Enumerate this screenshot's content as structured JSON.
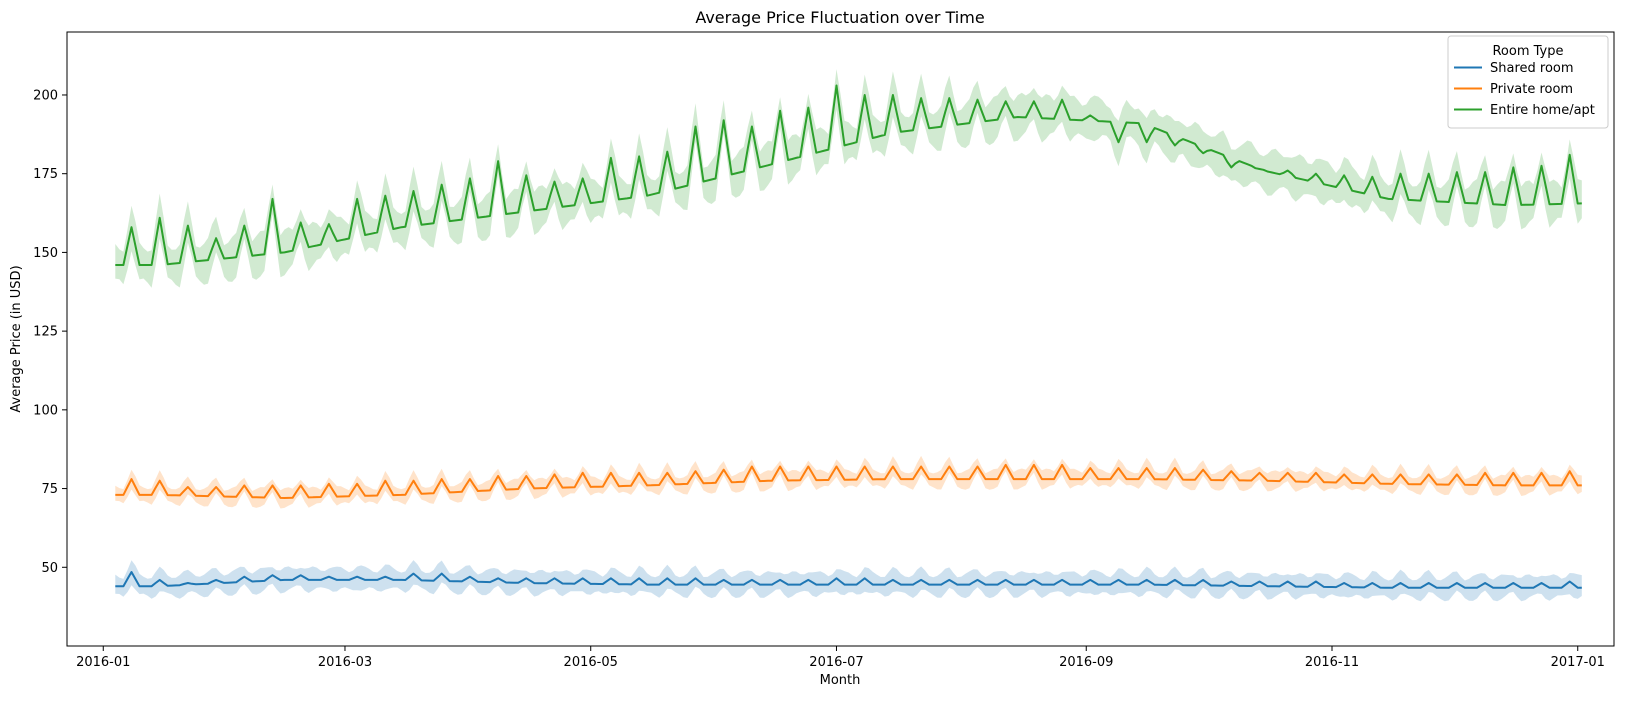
{
  "chart_data": {
    "type": "line",
    "title": "Average Price Fluctuation over Time",
    "xlabel": "Month",
    "ylabel": "Average Price (in USD)",
    "x_range": [
      "2015-12-23",
      "2017-01-10"
    ],
    "ylim": [
      25,
      220
    ],
    "x_ticks": [
      "2016-01",
      "2016-03",
      "2016-05",
      "2016-07",
      "2016-09",
      "2016-11",
      "2017-01"
    ],
    "y_ticks": [
      50,
      75,
      100,
      125,
      150,
      175,
      200
    ],
    "grid": false,
    "legend": {
      "title": "Room Type",
      "placement": "top-right",
      "entries": [
        "Shared room",
        "Private room",
        "Entire home/apt"
      ]
    },
    "x_start": "2016-01-04",
    "x_end": "2017-01-02",
    "weekly_peak_dates": [
      "2016-01-08",
      "2016-01-15",
      "2016-01-22",
      "2016-01-29",
      "2016-02-05",
      "2016-02-12",
      "2016-02-19",
      "2016-02-26",
      "2016-03-04",
      "2016-03-11",
      "2016-03-18",
      "2016-03-25",
      "2016-04-01",
      "2016-04-08",
      "2016-04-15",
      "2016-04-22",
      "2016-04-29",
      "2016-05-06",
      "2016-05-13",
      "2016-05-20",
      "2016-05-27",
      "2016-06-03",
      "2016-06-10",
      "2016-06-17",
      "2016-06-24",
      "2016-07-01",
      "2016-07-08",
      "2016-07-15",
      "2016-07-22",
      "2016-07-29",
      "2016-08-05",
      "2016-08-12",
      "2016-08-19",
      "2016-08-26",
      "2016-09-02",
      "2016-09-09",
      "2016-09-16",
      "2016-09-23",
      "2016-09-30",
      "2016-10-07",
      "2016-10-14",
      "2016-10-21",
      "2016-10-28",
      "2016-11-04",
      "2016-11-11",
      "2016-11-18",
      "2016-11-25",
      "2016-12-02",
      "2016-12-09",
      "2016-12-16",
      "2016-12-23",
      "2016-12-30"
    ],
    "series": [
      {
        "name": "Shared room",
        "color": "#1f77b4",
        "ci_half_width": 3.3,
        "baseline_by_month": [
          44,
          46,
          46,
          45,
          44.5,
          44.5,
          44.5,
          44.5,
          44.5,
          44,
          43.5,
          43.5,
          43.5
        ],
        "weekly_peak_values": [
          48.5,
          46,
          45,
          46,
          47,
          47.5,
          47.5,
          47,
          47,
          47,
          48,
          48,
          47,
          46.5,
          46.5,
          46.5,
          46.5,
          46.5,
          46.5,
          46.5,
          46.5,
          46,
          46,
          46,
          46,
          46.5,
          46.5,
          46,
          46,
          46,
          46,
          46,
          46,
          46,
          46,
          46,
          46,
          46,
          46,
          45.5,
          45.5,
          45.5,
          45.5,
          45,
          45,
          45,
          45,
          45,
          45,
          45,
          45,
          45.5
        ]
      },
      {
        "name": "Private room",
        "color": "#ff7f0e",
        "ci_half_width": 2.6,
        "baseline_by_month": [
          73,
          72,
          73,
          75,
          76,
          77.5,
          78,
          78,
          78,
          77.5,
          76.5,
          76,
          76
        ],
        "weekly_peak_values": [
          78,
          77.5,
          75.5,
          75.5,
          76,
          76,
          76,
          76.5,
          76.5,
          77.5,
          77.5,
          78,
          78,
          79,
          79,
          79.5,
          80,
          80,
          80,
          80,
          80.5,
          81,
          82,
          82,
          82,
          82,
          82,
          82,
          82,
          82,
          82,
          82.5,
          82.5,
          82.5,
          81.5,
          81.5,
          81.5,
          81.5,
          81,
          80.5,
          80,
          80,
          80,
          79.5,
          79.5,
          79.5,
          79.5,
          79.5,
          80,
          80,
          80,
          80.5
        ]
      },
      {
        "name": "Entire home/apt",
        "color": "#2ca02c",
        "ci_half_width": 6,
        "baseline_by_month": [
          146,
          150,
          158,
          163,
          168,
          178,
          188,
          193,
          191,
          176,
          167,
          165,
          166
        ],
        "weekly_peak_values": [
          158,
          161,
          158.5,
          154.5,
          158.5,
          167,
          159.5,
          159,
          167,
          168,
          169.5,
          171.5,
          173.5,
          179,
          174.5,
          172.5,
          173.5,
          180,
          180.5,
          182,
          190,
          192,
          190,
          195,
          196,
          203,
          200,
          200,
          199,
          199,
          198.5,
          198,
          198,
          198.5,
          193.5,
          185,
          185,
          184,
          181.5,
          177,
          176.5,
          176,
          175,
          174.5,
          174,
          175,
          175,
          175.5,
          175.5,
          177,
          177.5,
          181
        ]
      }
    ]
  }
}
